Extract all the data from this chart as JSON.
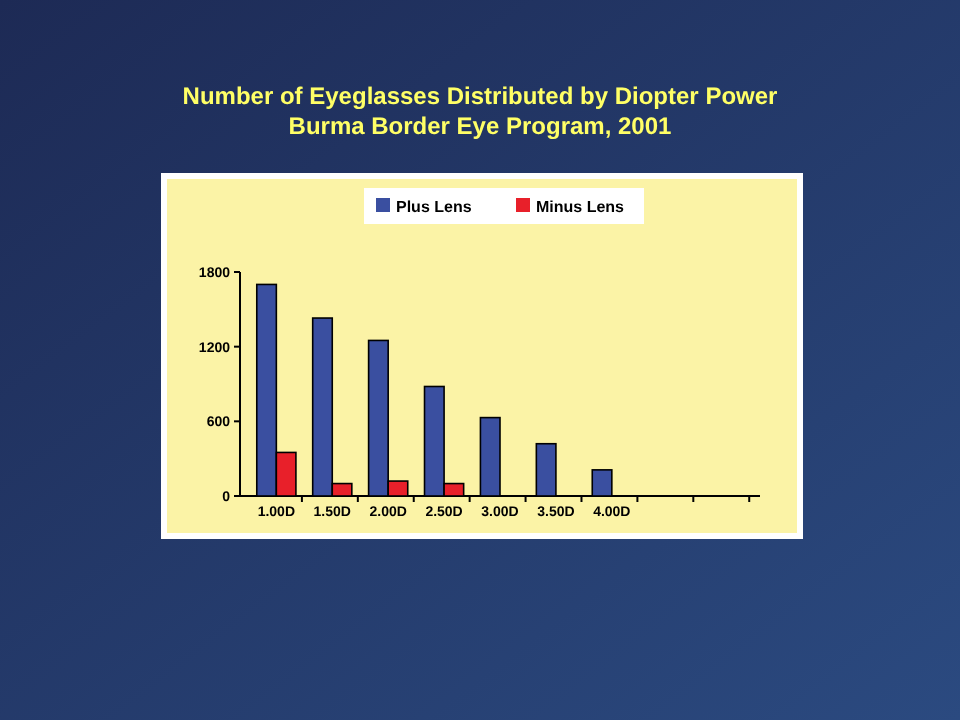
{
  "chart_data": {
    "type": "bar",
    "title": "Number of Eyeglasses Distributed by Diopter Power",
    "subtitle": "Burma Border Eye Program, 2001",
    "categories": [
      "1.00D",
      "1.50D",
      "2.00D",
      "2.50D",
      "3.00D",
      "3.50D",
      "4.00D",
      null,
      null
    ],
    "series": [
      {
        "name": "Plus Lens",
        "color": "#3a4fa0",
        "values": [
          1700,
          1430,
          1250,
          880,
          630,
          420,
          210,
          null,
          null
        ]
      },
      {
        "name": "Minus Lens",
        "color": "#e8202a",
        "values": [
          350,
          100,
          120,
          100,
          null,
          null,
          null,
          null,
          null
        ]
      }
    ],
    "ylim": [
      0,
      1800
    ],
    "yticks": [
      0,
      600,
      1200,
      1800
    ],
    "legend": "top",
    "grid": false
  }
}
